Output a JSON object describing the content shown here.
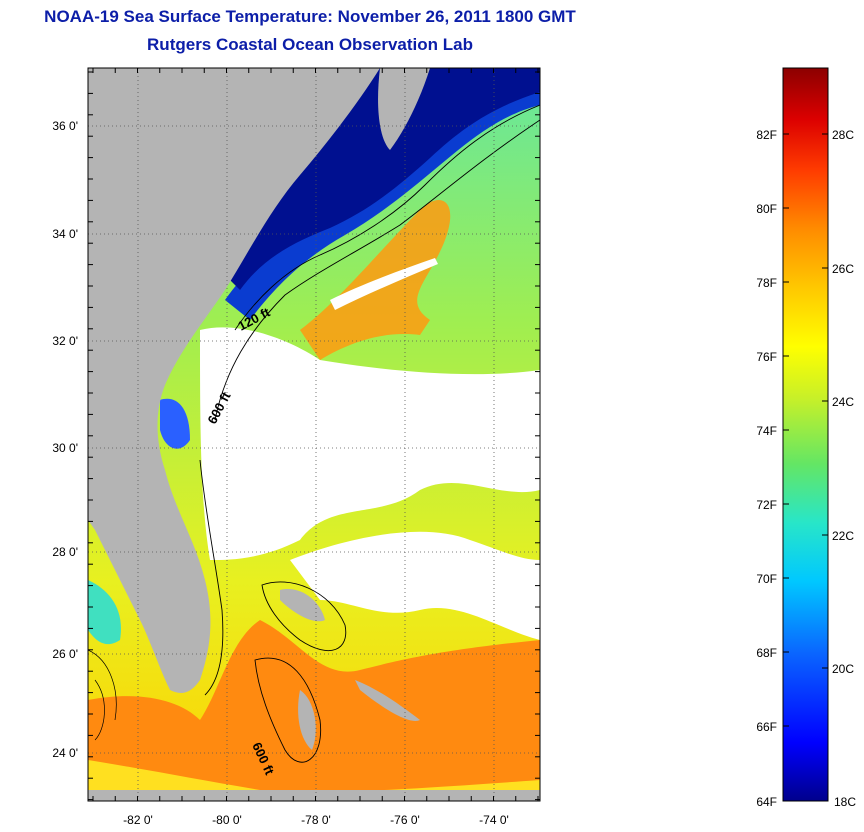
{
  "title": {
    "line1": "NOAA-19 Sea Surface Temperature:  November 26, 2011 1800 GMT",
    "line2": "Rutgers Coastal Ocean Observation Lab"
  },
  "map": {
    "lat_labels": [
      "36 0'",
      "34 0'",
      "32 0'",
      "30 0'",
      "28 0'",
      "26 0'",
      "24 0'"
    ],
    "lon_labels": [
      "-82 0'",
      "-80 0'",
      "-78 0'",
      "-76 0'",
      "-74 0'"
    ],
    "contour_labels": [
      "120 ft",
      "600 ft",
      "600 ft"
    ],
    "land_color": "#b4b4b4",
    "cloud_color": "#ffffff"
  },
  "colorbar": {
    "fahrenheit_labels": [
      "82F",
      "80F",
      "78F",
      "76F",
      "74F",
      "72F",
      "70F",
      "68F",
      "66F",
      "64F"
    ],
    "celsius_labels": [
      "28C",
      "26C",
      "24C",
      "22C",
      "20C",
      "18C"
    ],
    "colors": [
      "#00008c",
      "#0000ff",
      "#0a64ff",
      "#00c8ff",
      "#28e6c8",
      "#64e664",
      "#c8f028",
      "#ffff00",
      "#ffc800",
      "#ff8c00",
      "#ff3c00",
      "#dc0000",
      "#8c0000"
    ]
  }
}
